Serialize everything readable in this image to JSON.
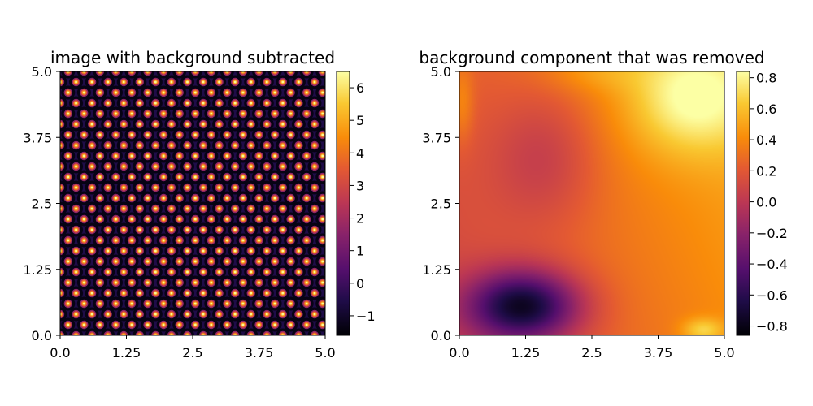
{
  "colormap": "inferno",
  "chart_data": [
    {
      "type": "heatmap",
      "title": "image with background subtracted",
      "xlabel": "",
      "ylabel": "",
      "xlim": [
        0.0,
        5.0
      ],
      "ylim": [
        0.0,
        5.0
      ],
      "xticks": [
        "0.0",
        "1.25",
        "2.5",
        "3.75",
        "5.0"
      ],
      "yticks": [
        "0.0",
        "1.25",
        "2.5",
        "3.75",
        "5.0"
      ],
      "colorbar": {
        "range": [
          -1.6,
          6.5
        ],
        "ticks": [
          -1,
          0,
          1,
          2,
          3,
          4,
          5,
          6
        ],
        "tick_labels": [
          "−1",
          "0",
          "1",
          "2",
          "3",
          "4",
          "5",
          "6"
        ]
      },
      "pattern": {
        "kind": "hexagonal lattice of bright atomic peaks",
        "peak_value": 6.4,
        "background_value": -0.6,
        "row_spacing": 0.2,
        "column_spacing": 0.3
      }
    },
    {
      "type": "heatmap",
      "title": "background component that was removed",
      "xlabel": "",
      "ylabel": "",
      "xlim": [
        0.0,
        5.0
      ],
      "ylim": [
        0.0,
        5.0
      ],
      "xticks": [
        "0.0",
        "1.25",
        "2.5",
        "3.75",
        "5.0"
      ],
      "yticks": [
        "0.0",
        "1.25",
        "2.5",
        "3.75",
        "5.0"
      ],
      "colorbar": {
        "range": [
          -0.86,
          0.84
        ],
        "ticks": [
          -0.8,
          -0.6,
          -0.4,
          -0.2,
          0.0,
          0.2,
          0.4,
          0.6,
          0.8
        ],
        "tick_labels": [
          "−0.8",
          "−0.6",
          "−0.4",
          "−0.2",
          "0.0",
          "0.2",
          "0.4",
          "0.6",
          "0.8"
        ]
      },
      "pattern": {
        "kind": "smooth background surface",
        "minimum": {
          "x": 1.2,
          "y": 0.55,
          "value": -0.86
        },
        "maximum": {
          "x": 4.4,
          "y": 4.5,
          "value": 0.84
        }
      }
    }
  ]
}
